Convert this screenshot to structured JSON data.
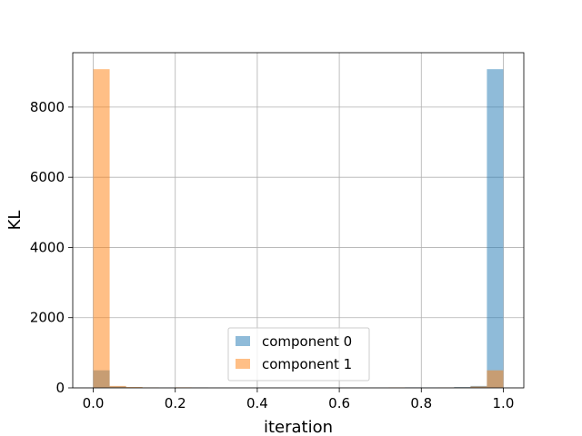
{
  "chart_data": {
    "type": "bar",
    "xlabel": "iteration",
    "ylabel": "KL",
    "xlim": [
      -0.05,
      1.05
    ],
    "ylim": [
      0,
      9550
    ],
    "grid": true,
    "legend_placement": "lower center",
    "x_ticks": [
      0.0,
      0.2,
      0.4,
      0.6,
      0.8,
      1.0
    ],
    "x_tick_labels": [
      "0.0",
      "0.2",
      "0.4",
      "0.6",
      "0.8",
      "1.0"
    ],
    "y_ticks": [
      0,
      2000,
      4000,
      6000,
      8000
    ],
    "y_tick_labels": [
      "0",
      "2000",
      "4000",
      "6000",
      "8000"
    ],
    "bin_edges": [
      0.0,
      0.04,
      0.08,
      0.12,
      0.16,
      0.2,
      0.24,
      0.28,
      0.32,
      0.36,
      0.4,
      0.44,
      0.48,
      0.52,
      0.56,
      0.6,
      0.64,
      0.68,
      0.72,
      0.76,
      0.8,
      0.84,
      0.88,
      0.92,
      0.96,
      1.0
    ],
    "series": [
      {
        "name": "component 0",
        "color": "#1f77b4",
        "alpha": 0.5,
        "values": [
          500,
          40,
          15,
          10,
          0,
          8,
          12,
          0,
          0,
          0,
          0,
          0,
          0,
          0,
          0,
          0,
          0,
          0,
          6,
          15,
          8,
          12,
          25,
          55,
          9080
        ]
      },
      {
        "name": "component 1",
        "color": "#ff7f0e",
        "alpha": 0.5,
        "values": [
          9080,
          55,
          25,
          12,
          0,
          15,
          6,
          0,
          0,
          0,
          0,
          0,
          0,
          0,
          0,
          0,
          0,
          0,
          12,
          8,
          0,
          10,
          15,
          40,
          500
        ]
      }
    ]
  }
}
